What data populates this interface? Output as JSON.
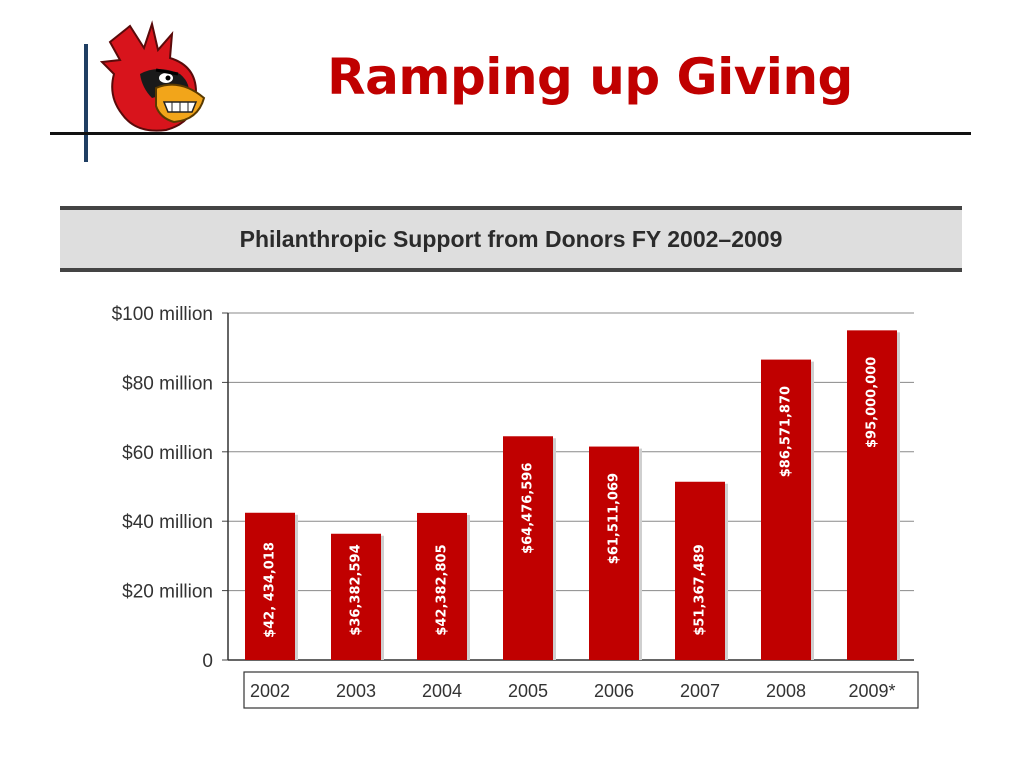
{
  "slide": {
    "title": "Ramping up Giving"
  },
  "colors": {
    "title": "#c00000",
    "bar": "#c00000",
    "accent_rule": "#1f3e63"
  },
  "logo": {
    "icon": "cardinal-mascot-icon"
  },
  "chart_data": {
    "type": "bar",
    "title": "Philanthropic Support from Donors FY 2002–2009",
    "xlabel": "",
    "ylabel": "",
    "categories": [
      "2002",
      "2003",
      "2004",
      "2005",
      "2006",
      "2007",
      "2008",
      "2009*"
    ],
    "values": [
      42434018,
      36382594,
      42382805,
      64476596,
      61511069,
      51367489,
      86571870,
      95000000
    ],
    "data_labels": [
      "$42, 434,018",
      "$36,382,594",
      "$42,382,805",
      "$64,476,596",
      "$61,511,069",
      "$51,367,489",
      "$86,571,870",
      "$95,000,000"
    ],
    "ylim": [
      0,
      100000000
    ],
    "y_ticks": [
      0,
      20000000,
      40000000,
      60000000,
      80000000,
      100000000
    ],
    "y_tick_labels": [
      "0",
      "$20 million",
      "$40 million",
      "$60 million",
      "$80 million",
      "$100 million"
    ],
    "grid": true,
    "label_orientation": "vertical"
  }
}
